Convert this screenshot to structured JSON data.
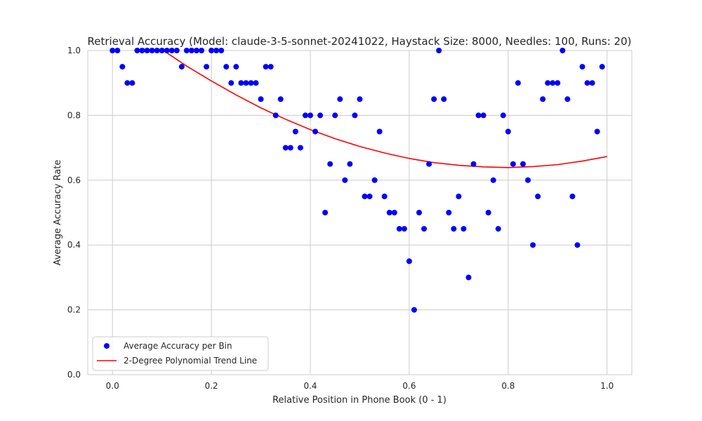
{
  "chart_data": {
    "type": "scatter",
    "title": "Retrieval Accuracy (Model: claude-3-5-sonnet-20241022, Haystack Size: 8000, Needles: 100, Runs: 20)",
    "xlabel": "Relative Position in Phone Book (0 - 1)",
    "ylabel": "Average Accuracy Rate",
    "xlim": [
      -0.05,
      1.05
    ],
    "ylim": [
      0,
      1
    ],
    "xticks": [
      "0.0",
      "0.2",
      "0.4",
      "0.6",
      "0.8",
      "1.0"
    ],
    "yticks": [
      "0.0",
      "0.2",
      "0.4",
      "0.6",
      "0.8",
      "1.0"
    ],
    "grid": true,
    "legend_position": "bottom-left",
    "colors": {
      "points": "#0000ff",
      "trend": "#ff0000",
      "grid": "#cccccc",
      "frame": "#cccccc"
    },
    "series": [
      {
        "name": "Average Accuracy per Bin",
        "kind": "scatter",
        "x": [
          0.0,
          0.01,
          0.02,
          0.03,
          0.04,
          0.05,
          0.06,
          0.07,
          0.08,
          0.09,
          0.1,
          0.11,
          0.12,
          0.13,
          0.14,
          0.15,
          0.16,
          0.17,
          0.18,
          0.19,
          0.2,
          0.21,
          0.22,
          0.23,
          0.24,
          0.25,
          0.26,
          0.27,
          0.28,
          0.29,
          0.3,
          0.31,
          0.32,
          0.33,
          0.34,
          0.35,
          0.36,
          0.37,
          0.38,
          0.39,
          0.4,
          0.41,
          0.42,
          0.43,
          0.44,
          0.45,
          0.46,
          0.47,
          0.48,
          0.49,
          0.5,
          0.51,
          0.52,
          0.53,
          0.54,
          0.55,
          0.56,
          0.57,
          0.58,
          0.59,
          0.6,
          0.61,
          0.62,
          0.63,
          0.64,
          0.65,
          0.66,
          0.67,
          0.68,
          0.69,
          0.7,
          0.71,
          0.72,
          0.73,
          0.74,
          0.75,
          0.76,
          0.77,
          0.78,
          0.79,
          0.8,
          0.81,
          0.82,
          0.83,
          0.84,
          0.85,
          0.86,
          0.87,
          0.88,
          0.89,
          0.9,
          0.91,
          0.92,
          0.93,
          0.94,
          0.95,
          0.96,
          0.97,
          0.98,
          0.99
        ],
        "y": [
          1.0,
          1.0,
          0.95,
          0.9,
          0.9,
          1.0,
          1.0,
          1.0,
          1.0,
          1.0,
          1.0,
          1.0,
          1.0,
          1.0,
          0.95,
          1.0,
          1.0,
          1.0,
          1.0,
          0.95,
          1.0,
          1.0,
          1.0,
          0.95,
          0.9,
          0.95,
          0.9,
          0.9,
          0.9,
          0.9,
          0.85,
          0.95,
          0.95,
          0.8,
          0.85,
          0.7,
          0.7,
          0.75,
          0.7,
          0.8,
          0.8,
          0.75,
          0.8,
          0.5,
          0.65,
          0.8,
          0.85,
          0.6,
          0.65,
          0.8,
          0.85,
          0.55,
          0.55,
          0.6,
          0.75,
          0.55,
          0.5,
          0.5,
          0.45,
          0.45,
          0.35,
          0.2,
          0.5,
          0.45,
          0.65,
          0.85,
          1.0,
          0.85,
          0.5,
          0.45,
          0.55,
          0.45,
          0.3,
          0.65,
          0.8,
          0.8,
          0.5,
          0.6,
          0.45,
          0.8,
          0.75,
          0.65,
          0.9,
          0.65,
          0.6,
          0.4,
          0.55,
          0.85,
          0.9,
          0.9,
          0.9,
          1.0,
          0.85,
          0.55,
          0.4,
          0.95,
          0.9,
          0.9,
          0.75,
          0.95
        ]
      },
      {
        "name": "2-Degree Polynomial Trend Line",
        "kind": "line",
        "x": [
          0.0,
          0.05,
          0.1,
          0.15,
          0.2,
          0.25,
          0.3,
          0.35,
          0.4,
          0.45,
          0.5,
          0.55,
          0.6,
          0.65,
          0.7,
          0.75,
          0.8,
          0.85,
          0.9,
          0.95,
          1.0
        ],
        "y": [
          1.115,
          1.057,
          1.003,
          0.952,
          0.906,
          0.863,
          0.823,
          0.788,
          0.756,
          0.728,
          0.704,
          0.684,
          0.667,
          0.654,
          0.646,
          0.641,
          0.639,
          0.642,
          0.648,
          0.659,
          0.673
        ]
      }
    ]
  }
}
